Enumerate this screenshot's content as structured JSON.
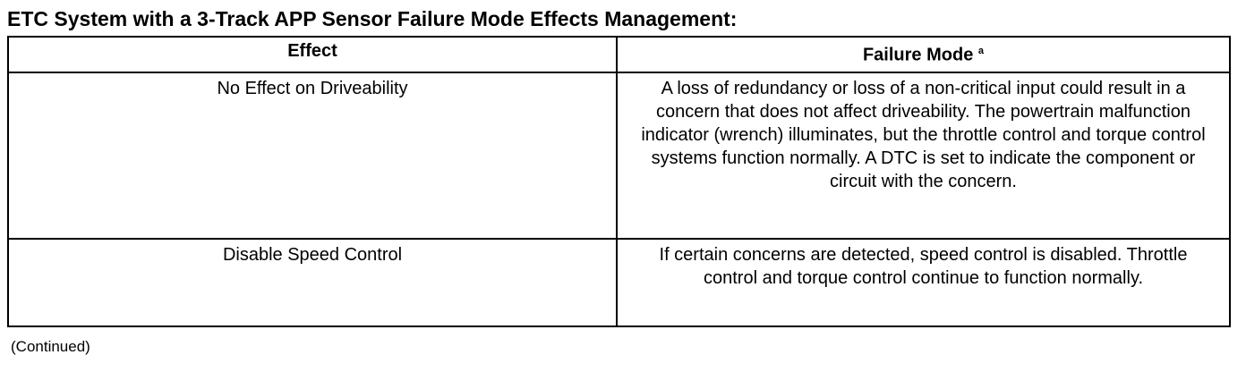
{
  "title": "ETC System with a 3-Track APP Sensor Failure Mode Effects Management:",
  "headers": {
    "effect": "Effect",
    "failure_mode": "Failure Mode",
    "footnote_mark": "a"
  },
  "rows": [
    {
      "effect": "No Effect on Driveability",
      "failure_mode": "A loss of redundancy or loss of a non-critical input could result in a concern that does not affect driveability. The powertrain malfunction indicator (wrench) illuminates, but the throttle control and torque control systems function normally. A DTC is set to indicate the component or circuit with the concern."
    },
    {
      "effect": "Disable Speed Control",
      "failure_mode": "If certain concerns are detected, speed control is disabled. Throttle control and torque control continue to function normally."
    }
  ],
  "continued": "(Continued)"
}
